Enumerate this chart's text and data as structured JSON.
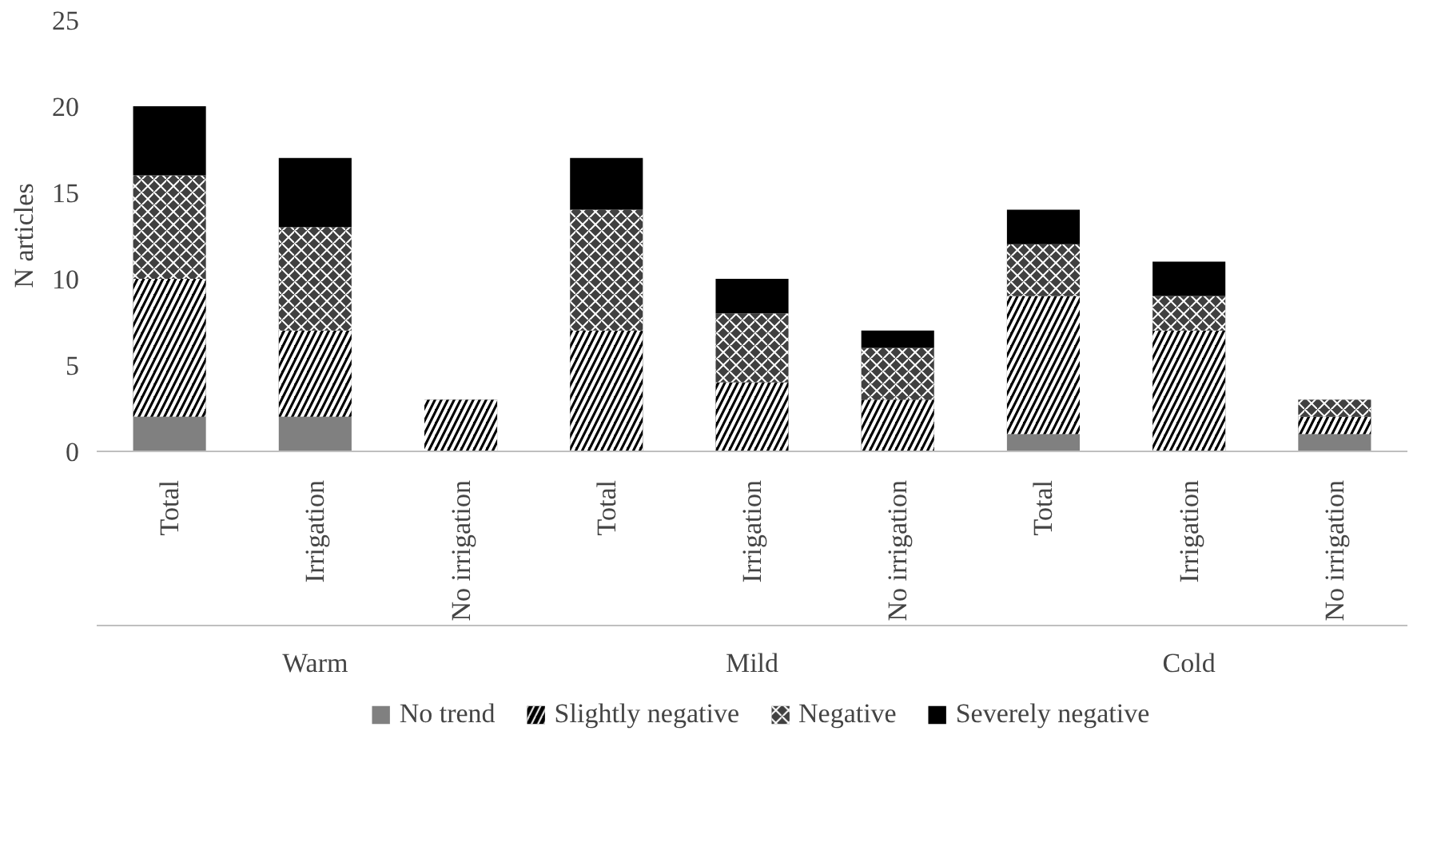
{
  "chart_data": {
    "type": "bar",
    "stacked": true,
    "ylabel": "N articles",
    "categories": [
      "Total",
      "Irrigation",
      "No irrigation",
      "Total",
      "Irrigation",
      "No irrigation",
      "Total",
      "Irrigation",
      "No irrigation"
    ],
    "annotations": [
      "Warm",
      "Mild",
      "Cold"
    ],
    "series": [
      {
        "name": "No trend",
        "color": "#808080",
        "values": [
          2,
          2,
          0,
          0,
          0,
          0,
          1,
          0,
          1
        ]
      },
      {
        "name": "Slightly negative",
        "color": "#000000",
        "values": [
          8,
          5,
          3,
          7,
          4,
          3,
          8,
          7,
          1
        ]
      },
      {
        "name": "Negative",
        "color": "#404040",
        "values": [
          6,
          6,
          0,
          7,
          4,
          3,
          3,
          2,
          1
        ]
      },
      {
        "name": "Severely negative",
        "color": "#000000",
        "values": [
          4,
          4,
          0,
          3,
          2,
          1,
          2,
          2,
          0
        ]
      }
    ],
    "ylim": [
      0,
      25
    ],
    "yticks": [
      0,
      5,
      10,
      15,
      20,
      25
    ],
    "grid": false,
    "legend": "bottom"
  }
}
